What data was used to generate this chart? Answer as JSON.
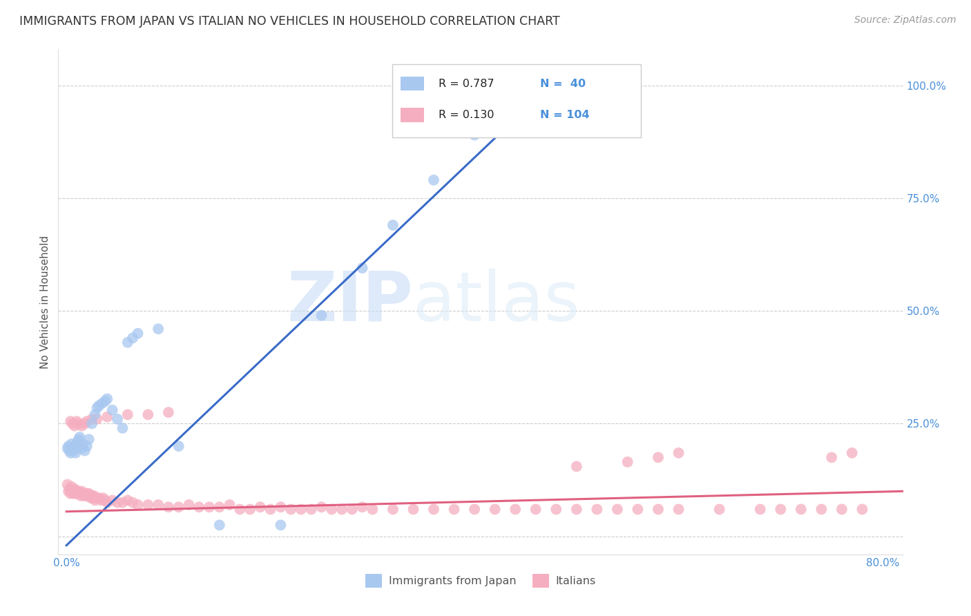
{
  "title": "IMMIGRANTS FROM JAPAN VS ITALIAN NO VEHICLES IN HOUSEHOLD CORRELATION CHART",
  "source": "Source: ZipAtlas.com",
  "ylabel": "No Vehicles in Household",
  "xlim": [
    -0.008,
    0.82
  ],
  "ylim": [
    -0.04,
    1.08
  ],
  "yticks": [
    0.0,
    0.25,
    0.5,
    0.75,
    1.0
  ],
  "yticklabels": [
    "",
    "25.0%",
    "50.0%",
    "75.0%",
    "100.0%"
  ],
  "xticks": [
    0.0,
    0.2,
    0.4,
    0.6,
    0.8
  ],
  "xticklabels": [
    "0.0%",
    "",
    "",
    "",
    "80.0%"
  ],
  "japan_color": "#a8c8f0",
  "italian_color": "#f5aec0",
  "japan_line_color": "#3a6bc8",
  "italian_line_color": "#e06080",
  "japan_R": 0.787,
  "japan_N": 40,
  "italian_R": 0.13,
  "italian_N": 104,
  "watermark_zip": "ZIP",
  "watermark_atlas": "atlas",
  "background_color": "#ffffff",
  "grid_color": "#cccccc",
  "tick_color": "#4a90d9",
  "japan_scatter_x": [
    0.001,
    0.002,
    0.003,
    0.004,
    0.005,
    0.006,
    0.007,
    0.008,
    0.009,
    0.01,
    0.011,
    0.012,
    0.013,
    0.015,
    0.016,
    0.018,
    0.02,
    0.022,
    0.025,
    0.028,
    0.03,
    0.032,
    0.035,
    0.038,
    0.04,
    0.045,
    0.05,
    0.055,
    0.06,
    0.065,
    0.07,
    0.09,
    0.11,
    0.15,
    0.21,
    0.25,
    0.29,
    0.32,
    0.36,
    0.4
  ],
  "japan_scatter_y": [
    0.195,
    0.2,
    0.19,
    0.185,
    0.205,
    0.195,
    0.19,
    0.2,
    0.185,
    0.195,
    0.21,
    0.215,
    0.22,
    0.195,
    0.205,
    0.19,
    0.2,
    0.215,
    0.25,
    0.27,
    0.285,
    0.29,
    0.295,
    0.3,
    0.305,
    0.28,
    0.26,
    0.24,
    0.43,
    0.44,
    0.45,
    0.46,
    0.2,
    0.025,
    0.025,
    0.49,
    0.595,
    0.69,
    0.79,
    0.89
  ],
  "italian_scatter_x": [
    0.001,
    0.002,
    0.003,
    0.004,
    0.005,
    0.006,
    0.007,
    0.008,
    0.009,
    0.01,
    0.011,
    0.012,
    0.013,
    0.014,
    0.015,
    0.016,
    0.017,
    0.018,
    0.019,
    0.02,
    0.021,
    0.022,
    0.023,
    0.024,
    0.025,
    0.026,
    0.027,
    0.028,
    0.03,
    0.032,
    0.034,
    0.036,
    0.038,
    0.04,
    0.045,
    0.05,
    0.055,
    0.06,
    0.065,
    0.07,
    0.08,
    0.09,
    0.1,
    0.11,
    0.12,
    0.13,
    0.14,
    0.15,
    0.16,
    0.17,
    0.18,
    0.19,
    0.2,
    0.21,
    0.22,
    0.23,
    0.24,
    0.25,
    0.26,
    0.27,
    0.28,
    0.29,
    0.3,
    0.32,
    0.34,
    0.36,
    0.38,
    0.4,
    0.42,
    0.44,
    0.46,
    0.48,
    0.5,
    0.52,
    0.54,
    0.56,
    0.58,
    0.6,
    0.64,
    0.68,
    0.7,
    0.72,
    0.74,
    0.76,
    0.78,
    0.004,
    0.006,
    0.008,
    0.01,
    0.012,
    0.015,
    0.018,
    0.02,
    0.025,
    0.03,
    0.04,
    0.06,
    0.08,
    0.1,
    0.5,
    0.55,
    0.58,
    0.6,
    0.75,
    0.77
  ],
  "italian_scatter_y": [
    0.115,
    0.1,
    0.105,
    0.095,
    0.11,
    0.1,
    0.095,
    0.105,
    0.095,
    0.1,
    0.095,
    0.1,
    0.095,
    0.09,
    0.1,
    0.095,
    0.09,
    0.095,
    0.09,
    0.095,
    0.09,
    0.095,
    0.09,
    0.085,
    0.09,
    0.085,
    0.09,
    0.08,
    0.085,
    0.085,
    0.08,
    0.085,
    0.08,
    0.075,
    0.08,
    0.075,
    0.075,
    0.08,
    0.075,
    0.07,
    0.07,
    0.07,
    0.065,
    0.065,
    0.07,
    0.065,
    0.065,
    0.065,
    0.07,
    0.06,
    0.06,
    0.065,
    0.06,
    0.065,
    0.06,
    0.06,
    0.06,
    0.065,
    0.06,
    0.06,
    0.06,
    0.065,
    0.06,
    0.06,
    0.06,
    0.06,
    0.06,
    0.06,
    0.06,
    0.06,
    0.06,
    0.06,
    0.06,
    0.06,
    0.06,
    0.06,
    0.06,
    0.06,
    0.06,
    0.06,
    0.06,
    0.06,
    0.06,
    0.06,
    0.06,
    0.255,
    0.25,
    0.245,
    0.255,
    0.25,
    0.245,
    0.25,
    0.255,
    0.26,
    0.26,
    0.265,
    0.27,
    0.27,
    0.275,
    0.155,
    0.165,
    0.175,
    0.185,
    0.175,
    0.185
  ],
  "japan_line_x": [
    0.0,
    0.43
  ],
  "japan_line_y_intercept": -0.02,
  "japan_line_slope": 2.15,
  "italian_line_x": [
    0.0,
    0.82
  ],
  "italian_line_y_intercept": 0.055,
  "italian_line_slope": 0.055
}
